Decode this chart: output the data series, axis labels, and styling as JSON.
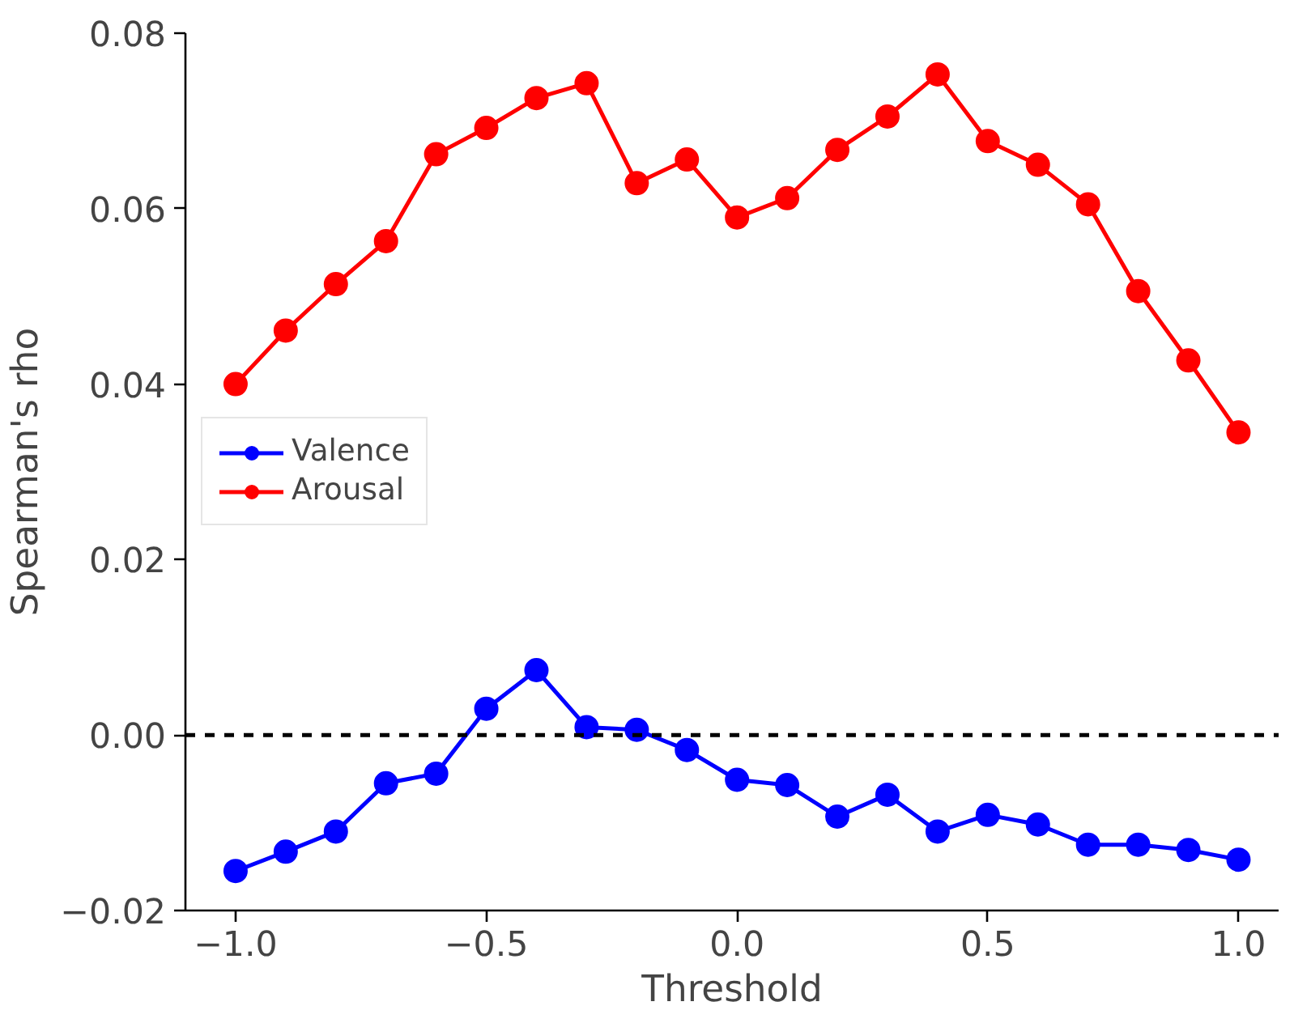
{
  "chart_data": {
    "type": "line",
    "xlabel": "Threshold",
    "ylabel": "Spearman's rho",
    "x": [
      -1.0,
      -0.9,
      -0.8,
      -0.7,
      -0.6,
      -0.5,
      -0.4,
      -0.3,
      -0.2,
      -0.1,
      0.0,
      0.1,
      0.2,
      0.3,
      0.4,
      0.5,
      0.6,
      0.7,
      0.8,
      0.9,
      1.0
    ],
    "series": [
      {
        "name": "Valence",
        "color": "#0000ff",
        "values": [
          -0.0155,
          -0.0133,
          -0.011,
          -0.0055,
          -0.0044,
          0.003,
          0.0074,
          0.0009,
          0.0006,
          -0.0017,
          -0.0051,
          -0.0057,
          -0.0093,
          -0.0068,
          -0.011,
          -0.0091,
          -0.0102,
          -0.0125,
          -0.0125,
          -0.0131,
          -0.0142
        ]
      },
      {
        "name": "Arousal",
        "color": "#ff0000",
        "values": [
          0.04,
          0.0461,
          0.0514,
          0.0563,
          0.0662,
          0.0692,
          0.0726,
          0.0743,
          0.0629,
          0.0656,
          0.059,
          0.0612,
          0.0667,
          0.0705,
          0.0753,
          0.0677,
          0.065,
          0.0605,
          0.0506,
          0.0427,
          0.0345
        ]
      }
    ],
    "xlim": [
      -1.1,
      1.08
    ],
    "ylim": [
      -0.02,
      0.08
    ],
    "xticks": [
      {
        "value": -1.0,
        "label": "−1.0"
      },
      {
        "value": -0.5,
        "label": "−0.5"
      },
      {
        "value": 0.0,
        "label": "0.0"
      },
      {
        "value": 0.5,
        "label": "0.5"
      },
      {
        "value": 1.0,
        "label": "1.0"
      }
    ],
    "yticks": [
      {
        "value": -0.02,
        "label": "−0.02"
      },
      {
        "value": 0.0,
        "label": "0.00"
      },
      {
        "value": 0.02,
        "label": "0.02"
      },
      {
        "value": 0.04,
        "label": "0.04"
      },
      {
        "value": 0.06,
        "label": "0.06"
      },
      {
        "value": 0.08,
        "label": "0.08"
      }
    ],
    "ref_lines": [
      {
        "axis": "y",
        "value": 0.0,
        "label": null,
        "color": "#000000",
        "line_style": "dashed"
      }
    ],
    "legend": "left",
    "marker": "circle",
    "line_style": "solid",
    "grid": false
  }
}
